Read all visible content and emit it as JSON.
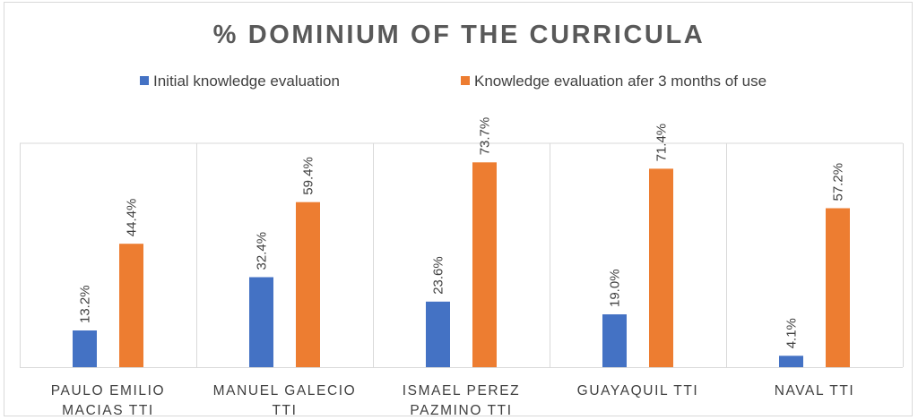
{
  "chart_data": {
    "type": "bar",
    "title": "% DOMINIUM OF THE CURRICULA",
    "categories": [
      [
        "PAULO EMILIO",
        "MACIAS TTI"
      ],
      [
        "MANUEL GALECIO",
        "TTI"
      ],
      [
        "ISMAEL PEREZ",
        "PAZMINO TTI"
      ],
      [
        "GUAYAQUIL TTI"
      ],
      [
        "NAVAL TTI"
      ]
    ],
    "series": [
      {
        "name": "Initial knowledge evaluation",
        "color": "#4472c4",
        "values": [
          13.2,
          32.4,
          23.6,
          19.0,
          4.1
        ],
        "labels": [
          "13.2%",
          "32.4%",
          "23.6%",
          "19.0%",
          "4.1%"
        ]
      },
      {
        "name": "Knowledge evaluation afer 3 months of use",
        "color": "#ed7d31",
        "values": [
          44.4,
          59.4,
          73.7,
          71.4,
          57.2
        ],
        "labels": [
          "44.4%",
          "59.4%",
          "73.7%",
          "71.4%",
          "57.2%"
        ]
      }
    ],
    "ylim": [
      0,
      80
    ],
    "grid": false,
    "category_separators": true,
    "legend_position": "top"
  }
}
